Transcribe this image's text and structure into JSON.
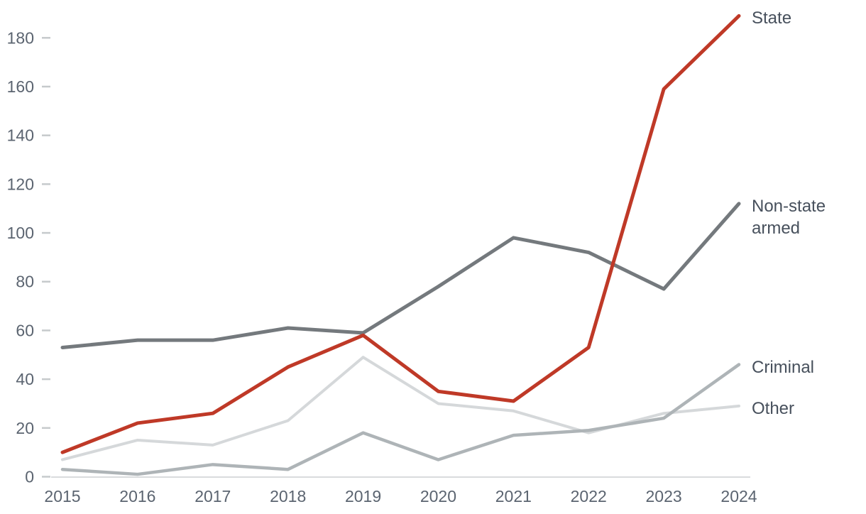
{
  "chart_data": {
    "type": "line",
    "title": "",
    "xlabel": "",
    "ylabel": "",
    "x": [
      2015,
      2016,
      2017,
      2018,
      2019,
      2020,
      2021,
      2022,
      2023,
      2024
    ],
    "yticks": [
      0,
      20,
      40,
      60,
      80,
      100,
      120,
      140,
      160,
      180
    ],
    "ylim": [
      0,
      190
    ],
    "grid": false,
    "legend_position": "right-of-line-ends",
    "series": [
      {
        "name": "State",
        "color": "#bf3927",
        "stroke_width": 5,
        "values": [
          10,
          22,
          26,
          45,
          58,
          35,
          31,
          53,
          159,
          189
        ]
      },
      {
        "name": "Non-state armed",
        "color": "#74797d",
        "stroke_width": 5,
        "values": [
          53,
          56,
          56,
          61,
          59,
          78,
          98,
          92,
          77,
          112
        ]
      },
      {
        "name": "Criminal",
        "color": "#aeb4b7",
        "stroke_width": 4.5,
        "values": [
          3,
          1,
          5,
          3,
          18,
          7,
          17,
          19,
          24,
          46
        ]
      },
      {
        "name": "Other",
        "color": "#d5d8da",
        "stroke_width": 4,
        "values": [
          7,
          15,
          13,
          23,
          49,
          30,
          27,
          18,
          26,
          29
        ]
      }
    ],
    "colors": {
      "axis_line": "#d9dbdd",
      "tick_mark": "#c6cacc",
      "tick_text": "#5b6470",
      "legend_text": "#47505c",
      "background": "#ffffff"
    }
  }
}
